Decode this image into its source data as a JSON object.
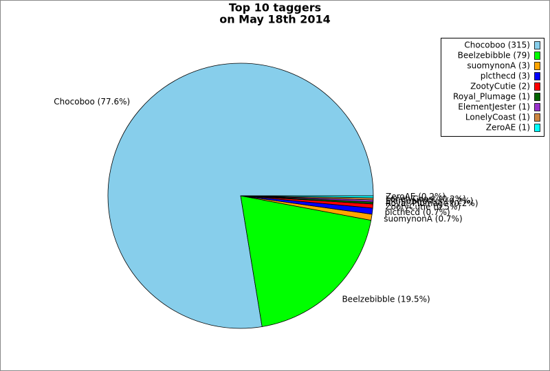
{
  "chart_data": {
    "type": "pie",
    "title": "Top 10 taggers",
    "subtitle": "on May 18th 2014",
    "categories": [
      "Chocoboo",
      "Beelzebibble",
      "suomynonA",
      "plcthecd",
      "ZootyCutie",
      "Royal_Plumage",
      "ElementJester",
      "LonelyCoast",
      "ZeroAE"
    ],
    "values": [
      315,
      79,
      3,
      3,
      2,
      1,
      1,
      1,
      1
    ],
    "legend": [
      "Chocoboo (315)",
      "Beelzebibble (79)",
      "suomynonA (3)",
      "plcthecd (3)",
      "ZootyCutie (2)",
      "Royal_Plumage (1)",
      "ElementJester (1)",
      "LonelyCoast (1)",
      "ZeroAE (1)"
    ],
    "labels": [
      "Chocoboo (77.6%)",
      "Beelzebibble (19.5%)",
      "suomynonA (0.7%)",
      "plcthecd (0.7%)",
      "ZootyCutie (0.5%)",
      "Royal_Plumage (0.2%)",
      "ElementJester (0.2%)",
      "LonelyCoast (0.2%)",
      "ZeroAE (0.2%)"
    ],
    "colors": [
      "#87ceeb",
      "#00ff00",
      "#ffa500",
      "#0000ff",
      "#ff0000",
      "#006400",
      "#9932cc",
      "#cd853f",
      "#00ffff"
    ],
    "legend_position": "upper right"
  }
}
